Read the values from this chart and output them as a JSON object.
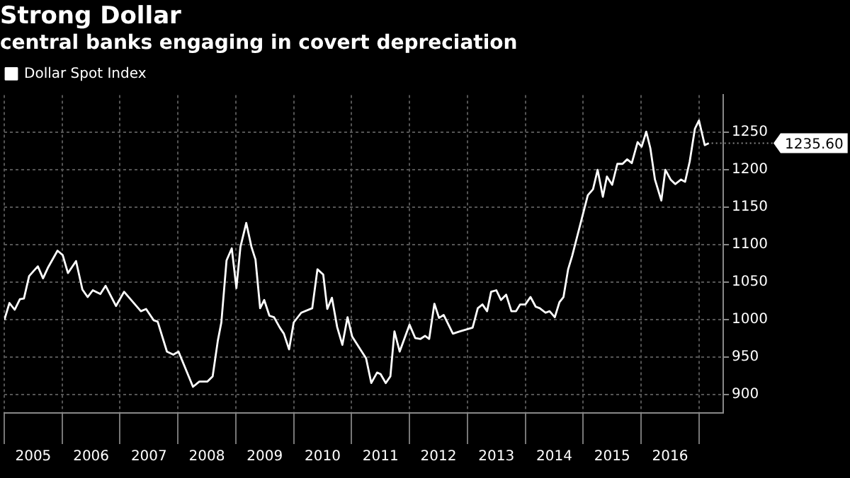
{
  "chart_data": {
    "type": "line",
    "title": "Strong Dollar",
    "subtitle": "central banks engaging in covert depreciation",
    "legend": "top left",
    "grid": true,
    "marker": "none",
    "line_style": "solid",
    "series": [
      {
        "name": "Dollar Spot Index",
        "color": "#ffffff",
        "x": [
          2005.0,
          2005.09,
          2005.18,
          2005.27,
          2005.34,
          2005.43,
          2005.58,
          2005.67,
          2005.76,
          2005.92,
          2006.01,
          2006.1,
          2006.24,
          2006.35,
          2006.44,
          2006.53,
          2006.66,
          2006.75,
          2006.93,
          2007.07,
          2007.36,
          2007.45,
          2007.58,
          2007.65,
          2007.81,
          2007.92,
          2008.01,
          2008.26,
          2008.37,
          2008.51,
          2008.6,
          2008.69,
          2008.75,
          2008.84,
          2008.93,
          2009.01,
          2009.08,
          2009.18,
          2009.27,
          2009.34,
          2009.42,
          2009.49,
          2009.58,
          2009.66,
          2009.76,
          2009.83,
          2009.92,
          2010.0,
          2010.13,
          2010.32,
          2010.41,
          2010.51,
          2010.58,
          2010.66,
          2010.75,
          2010.84,
          2010.93,
          2011.01,
          2011.25,
          2011.34,
          2011.44,
          2011.5,
          2011.59,
          2011.67,
          2011.74,
          2011.83,
          2012.0,
          2012.1,
          2012.19,
          2012.27,
          2012.34,
          2012.43,
          2012.51,
          2012.59,
          2012.75,
          2012.87,
          2013.09,
          2013.18,
          2013.26,
          2013.34,
          2013.41,
          2013.5,
          2013.58,
          2013.67,
          2013.76,
          2013.84,
          2013.91,
          2014.0,
          2014.09,
          2014.18,
          2014.25,
          2014.35,
          2014.42,
          2014.51,
          2014.59,
          2014.66,
          2014.74,
          2014.81,
          2014.93,
          2015.08,
          2015.17,
          2015.25,
          2015.34,
          2015.41,
          2015.5,
          2015.59,
          2015.68,
          2015.76,
          2015.84,
          2015.94,
          2016.01,
          2016.09,
          2016.16,
          2016.24,
          2016.35,
          2016.42,
          2016.51,
          2016.59,
          2016.69,
          2016.76,
          2016.84,
          2016.93,
          2017.0,
          2017.1,
          2017.17
        ],
        "values": [
          999,
          1022,
          1013,
          1027,
          1028,
          1058,
          1071,
          1055,
          1070,
          1092,
          1086,
          1062,
          1078,
          1040,
          1030,
          1039,
          1034,
          1045,
          1018,
          1037,
          1011,
          1014,
          999,
          997,
          957,
          953,
          957,
          910,
          917,
          917,
          924,
          972,
          996,
          1079,
          1095,
          1042,
          1097,
          1129,
          1097,
          1080,
          1015,
          1026,
          1005,
          1003,
          989,
          981,
          960,
          996,
          1009,
          1015,
          1067,
          1060,
          1014,
          1029,
          990,
          966,
          1003,
          977,
          948,
          915,
          929,
          927,
          915,
          924,
          984,
          957,
          993,
          975,
          974,
          978,
          974,
          1021,
          1002,
          1006,
          981,
          984,
          989,
          1015,
          1020,
          1011,
          1037,
          1039,
          1026,
          1033,
          1011,
          1011,
          1020,
          1020,
          1030,
          1017,
          1015,
          1009,
          1011,
          1003,
          1023,
          1030,
          1067,
          1085,
          1121,
          1166,
          1174,
          1200,
          1164,
          1191,
          1180,
          1208,
          1208,
          1214,
          1209,
          1237,
          1231,
          1251,
          1229,
          1187,
          1159,
          1200,
          1187,
          1181,
          1187,
          1184,
          1211,
          1255,
          1266,
          1233,
          1235.6
        ]
      }
    ],
    "xlim": [
      2005,
      2017.42
    ],
    "xticks": [
      {
        "value": 2005,
        "label": null
      },
      {
        "value": 2005.5,
        "label": "2005"
      },
      {
        "value": 2006,
        "label": null
      },
      {
        "value": 2006.5,
        "label": "2006"
      },
      {
        "value": 2007,
        "label": null
      },
      {
        "value": 2007.5,
        "label": "2007"
      },
      {
        "value": 2008,
        "label": null
      },
      {
        "value": 2008.5,
        "label": "2008"
      },
      {
        "value": 2009,
        "label": null
      },
      {
        "value": 2009.5,
        "label": "2009"
      },
      {
        "value": 2010,
        "label": null
      },
      {
        "value": 2010.5,
        "label": "2010"
      },
      {
        "value": 2011,
        "label": null
      },
      {
        "value": 2011.5,
        "label": "2011"
      },
      {
        "value": 2012,
        "label": null
      },
      {
        "value": 2012.5,
        "label": "2012"
      },
      {
        "value": 2013,
        "label": null
      },
      {
        "value": 2013.5,
        "label": "2013"
      },
      {
        "value": 2014,
        "label": null
      },
      {
        "value": 2014.5,
        "label": "2014"
      },
      {
        "value": 2015,
        "label": null
      },
      {
        "value": 2015.5,
        "label": "2015"
      },
      {
        "value": 2016,
        "label": null
      },
      {
        "value": 2016.5,
        "label": "2016"
      },
      {
        "value": 2017,
        "label": null
      }
    ],
    "ylim": [
      875,
      1300
    ],
    "yticks": [
      900,
      950,
      1000,
      1050,
      1100,
      1150,
      1200,
      1250
    ],
    "annotations": [
      {
        "text": "1235.60",
        "x": 2017.17,
        "y": 1235.6
      }
    ]
  }
}
